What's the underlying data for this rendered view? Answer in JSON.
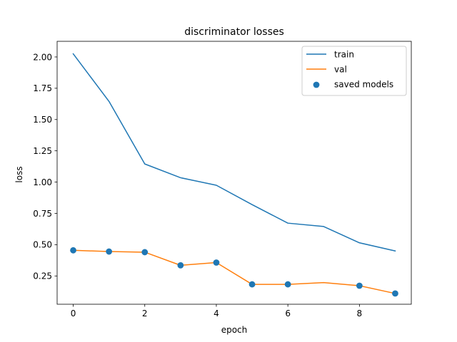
{
  "chart_data": {
    "type": "line",
    "title": "discriminator losses",
    "xlabel": "epoch",
    "ylabel": "loss",
    "xlim": [
      -0.45,
      9.45
    ],
    "ylim": [
      0.024,
      2.125
    ],
    "xticks": [
      0,
      2,
      4,
      6,
      8
    ],
    "xtick_labels": [
      "0",
      "2",
      "4",
      "6",
      "8"
    ],
    "yticks": [
      0.25,
      0.5,
      0.75,
      1.0,
      1.25,
      1.5,
      1.75,
      2.0
    ],
    "ytick_labels": [
      "0.25",
      "0.50",
      "0.75",
      "1.00",
      "1.25",
      "1.50",
      "1.75",
      "2.00"
    ],
    "grid": false,
    "legend_position": "upper-right",
    "series": [
      {
        "name": "train",
        "kind": "line",
        "color": "#1f77b4",
        "x": [
          0,
          1,
          2,
          3,
          4,
          5,
          6,
          7,
          8,
          9
        ],
        "values": [
          2.025,
          1.645,
          1.145,
          1.035,
          0.975,
          0.82,
          0.672,
          0.645,
          0.515,
          0.45
        ]
      },
      {
        "name": "val",
        "kind": "line",
        "color": "#ff7f0e",
        "x": [
          0,
          1,
          2,
          3,
          4,
          5,
          6,
          7,
          8,
          9
        ],
        "values": [
          0.455,
          0.445,
          0.44,
          0.335,
          0.357,
          0.183,
          0.183,
          0.197,
          0.172,
          0.11
        ]
      },
      {
        "name": "saved models",
        "kind": "scatter",
        "color": "#1f77b4",
        "x": [
          0,
          1,
          2,
          3,
          4,
          5,
          6,
          8,
          9
        ],
        "values": [
          0.455,
          0.445,
          0.44,
          0.335,
          0.357,
          0.183,
          0.183,
          0.172,
          0.11
        ]
      }
    ]
  }
}
